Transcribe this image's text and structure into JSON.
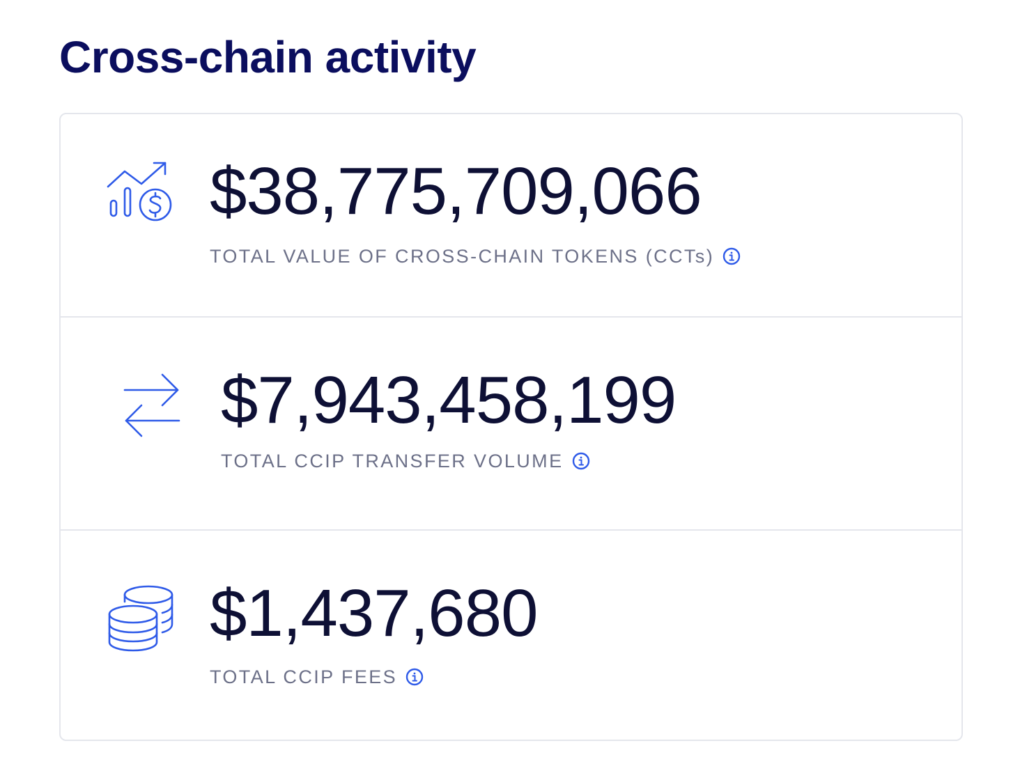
{
  "title": "Cross-chain activity",
  "accent_color": "#2e5ae8",
  "metrics": [
    {
      "icon": "chart-growth-dollar-icon",
      "value": "$38,775,709,066",
      "label": "TOTAL VALUE OF CROSS-CHAIN TOKENS (CCTs)"
    },
    {
      "icon": "transfer-arrows-icon",
      "value": "$7,943,458,199",
      "label": "TOTAL CCIP TRANSFER VOLUME"
    },
    {
      "icon": "coin-stack-icon",
      "value": "$1,437,680",
      "label": "TOTAL CCIP FEES"
    }
  ]
}
